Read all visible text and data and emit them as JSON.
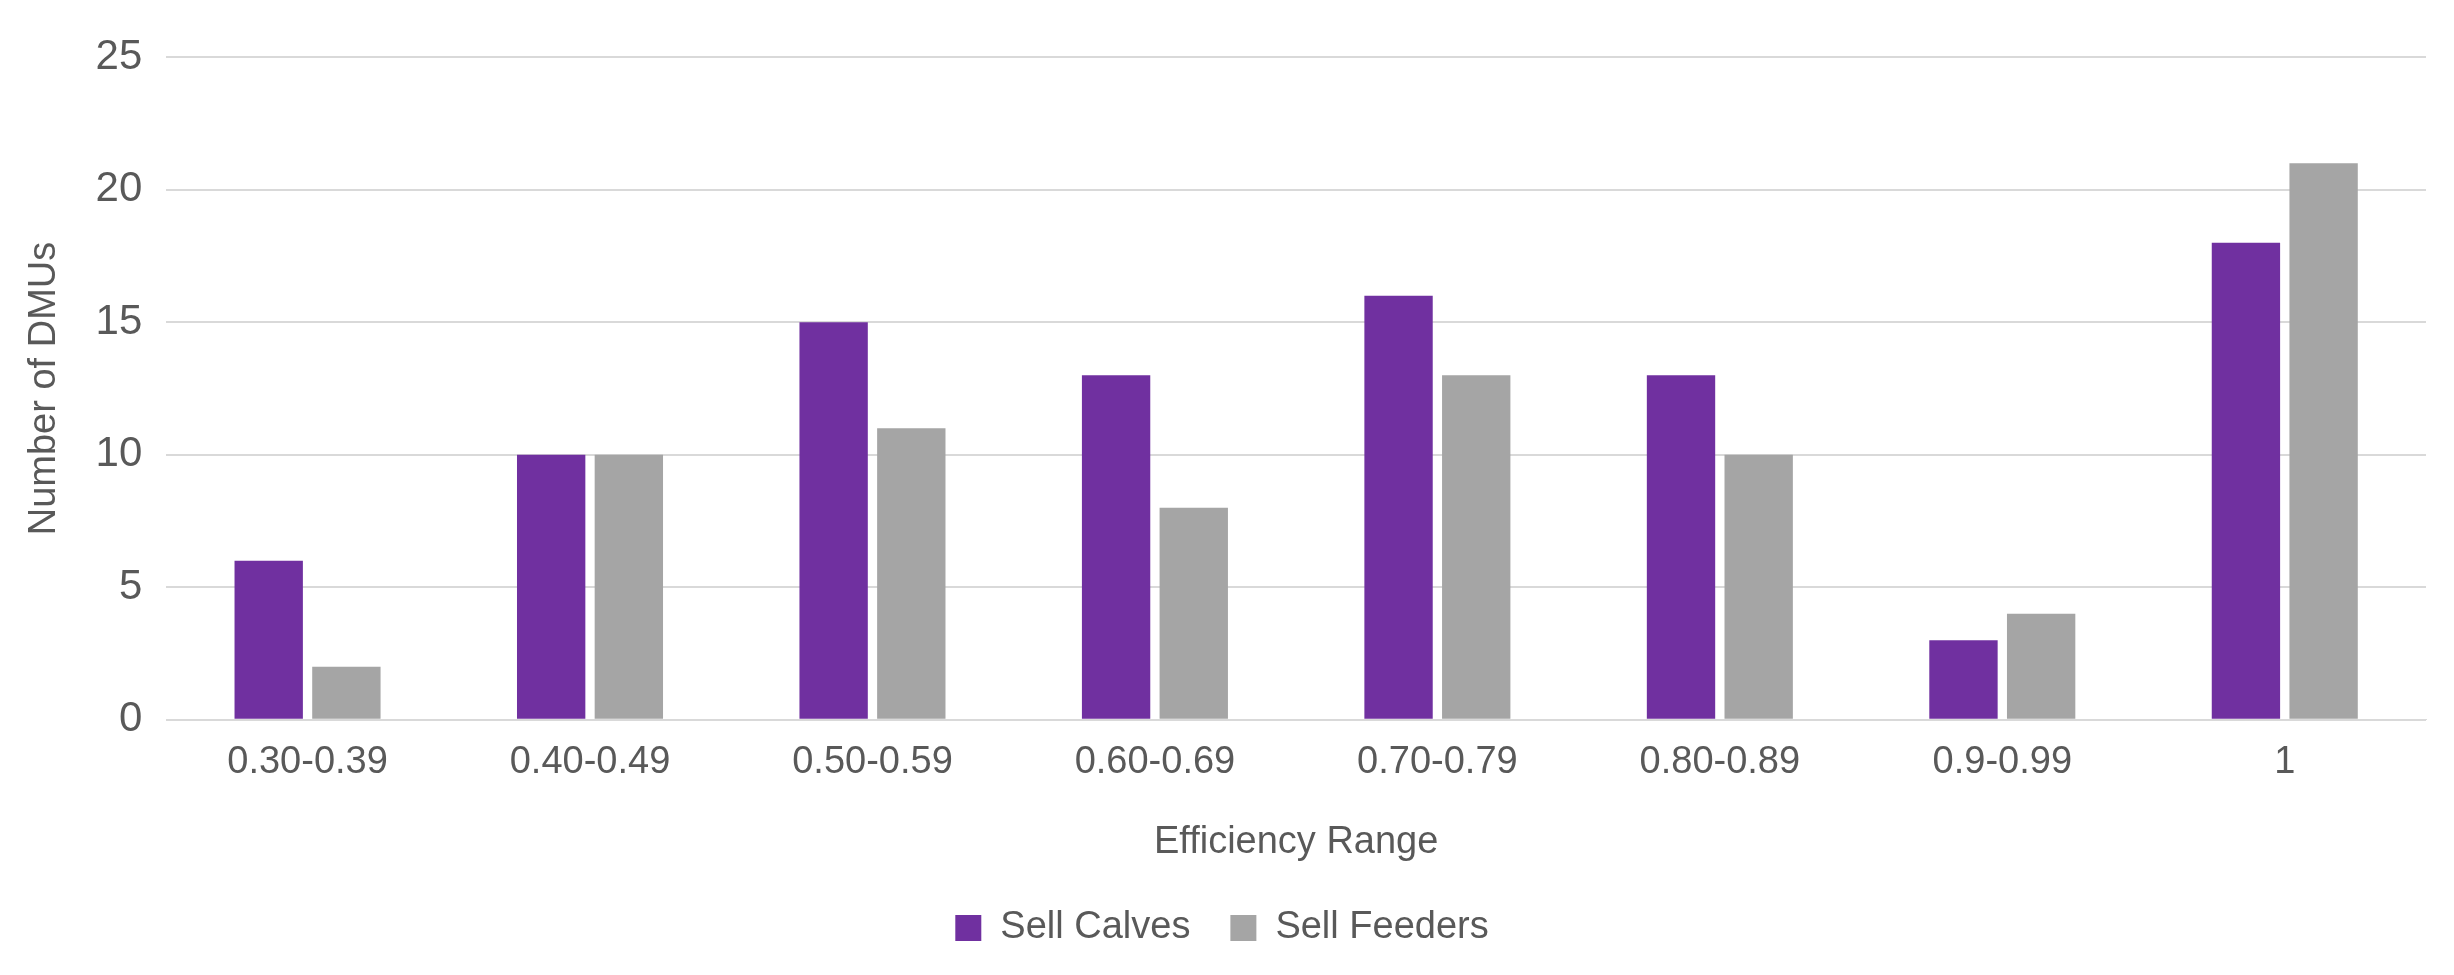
{
  "chart_data": {
    "type": "bar",
    "xlabel": "Efficiency Range",
    "ylabel": "Number of DMUs",
    "categories": [
      "0.30-0.39",
      "0.40-0.49",
      "0.50-0.59",
      "0.60-0.69",
      "0.70-0.79",
      "0.80-0.89",
      "0.9-0.99",
      "1"
    ],
    "series": [
      {
        "name": "Sell Calves",
        "color": "#7030a0",
        "values": [
          6,
          10,
          15,
          13,
          16,
          13,
          3,
          18
        ]
      },
      {
        "name": "Sell Feeders",
        "color": "#a5a5a5",
        "values": [
          2,
          10,
          11,
          8,
          13,
          10,
          4,
          21
        ]
      }
    ],
    "ylim": [
      0,
      25
    ],
    "yticks": [
      0,
      5,
      10,
      15,
      20,
      25
    ],
    "grid": "y",
    "legend": "bottom"
  }
}
